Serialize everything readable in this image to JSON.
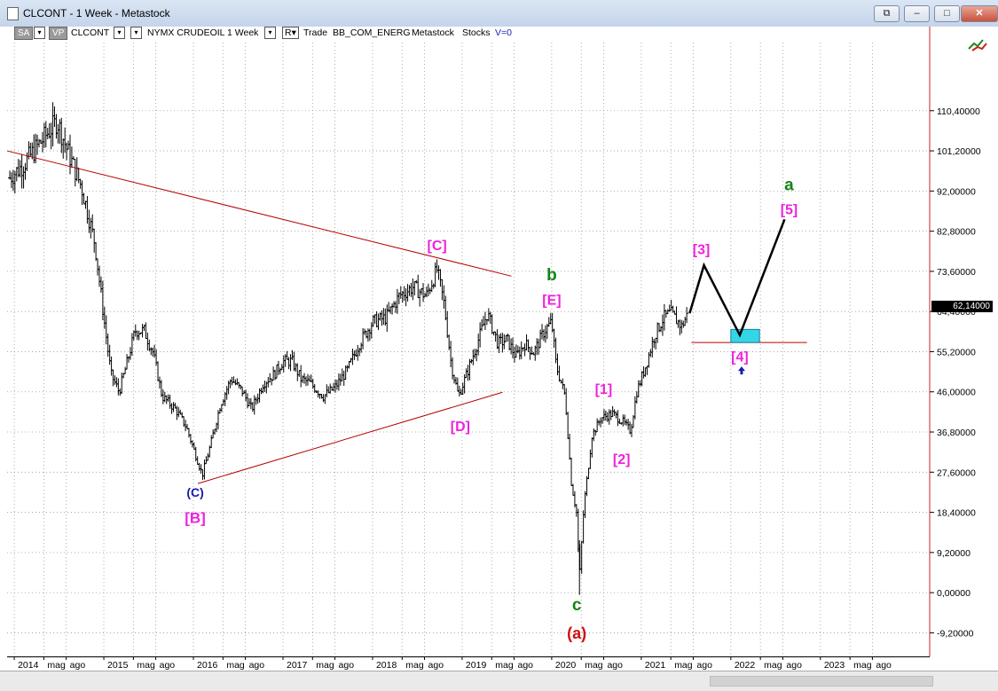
{
  "window": {
    "title": "CLCONT - 1 Week - Metastock",
    "controls": [
      "⧉",
      "–",
      "□",
      "✕"
    ]
  },
  "toolbar": {
    "sa_label": "SA",
    "vp_label": "VP",
    "symbol": "CLCONT",
    "instrument": "NYMX CRUDEOIL",
    "period": "1 Week",
    "r_label": "R",
    "trade_label": "Trade",
    "template": "BB_COM_ENERG",
    "source": "Metastock",
    "category": "Stocks",
    "volume": "V=0"
  },
  "colors": {
    "magenta": "#ee22dd",
    "green": "#148414",
    "blue": "#1a1ab0",
    "red": "#cc1111",
    "trendline": "#b40000",
    "target_box": "#33d6e6",
    "grid": "#9a9a9a",
    "bars": "#000000"
  },
  "chart_data": {
    "type": "ohlc",
    "interval": "weekly",
    "ylim": [
      -14.6,
      126
    ],
    "xlim": [
      2013.92,
      2024.22
    ],
    "grid": true,
    "last_price_label": "62,14000",
    "y_ticks": [
      {
        "value": 110.4,
        "label": "110,40000"
      },
      {
        "value": 101.2,
        "label": "101,20000"
      },
      {
        "value": 92.0,
        "label": "92,00000"
      },
      {
        "value": 82.8,
        "label": "82,80000"
      },
      {
        "value": 73.6,
        "label": "73,60000"
      },
      {
        "value": 64.4,
        "label": "64,40000"
      },
      {
        "value": 55.2,
        "label": "55,20000"
      },
      {
        "value": 46.0,
        "label": "46,00000"
      },
      {
        "value": 36.8,
        "label": "36,80000"
      },
      {
        "value": 27.6,
        "label": "27,60000"
      },
      {
        "value": 18.4,
        "label": "18,40000"
      },
      {
        "value": 9.2,
        "label": "9,20000"
      },
      {
        "value": 0.0,
        "label": "0,00000"
      },
      {
        "value": -9.2,
        "label": "-9,20000"
      }
    ],
    "x_ticks": [
      {
        "x": 2014.0,
        "label": "2014"
      },
      {
        "x": 2014.33,
        "label": "mag"
      },
      {
        "x": 2014.58,
        "label": "ago"
      },
      {
        "x": 2015.0,
        "label": "2015"
      },
      {
        "x": 2015.33,
        "label": "mag"
      },
      {
        "x": 2015.58,
        "label": "ago"
      },
      {
        "x": 2016.0,
        "label": "2016"
      },
      {
        "x": 2016.33,
        "label": "mag"
      },
      {
        "x": 2016.58,
        "label": "ago"
      },
      {
        "x": 2017.0,
        "label": "2017"
      },
      {
        "x": 2017.33,
        "label": "mag"
      },
      {
        "x": 2017.58,
        "label": "ago"
      },
      {
        "x": 2018.0,
        "label": "2018"
      },
      {
        "x": 2018.33,
        "label": "mag"
      },
      {
        "x": 2018.58,
        "label": "ago"
      },
      {
        "x": 2019.0,
        "label": "2019"
      },
      {
        "x": 2019.33,
        "label": "mag"
      },
      {
        "x": 2019.58,
        "label": "ago"
      },
      {
        "x": 2020.0,
        "label": "2020"
      },
      {
        "x": 2020.33,
        "label": "mag"
      },
      {
        "x": 2020.58,
        "label": "ago"
      },
      {
        "x": 2021.0,
        "label": "2021"
      },
      {
        "x": 2021.33,
        "label": "mag"
      },
      {
        "x": 2021.58,
        "label": "ago"
      },
      {
        "x": 2022.0,
        "label": "2022"
      },
      {
        "x": 2022.33,
        "label": "mag"
      },
      {
        "x": 2022.58,
        "label": "ago"
      },
      {
        "x": 2023.0,
        "label": "2023"
      },
      {
        "x": 2023.33,
        "label": "mag"
      },
      {
        "x": 2023.58,
        "label": "ago"
      }
    ],
    "price_path": [
      [
        2013.95,
        95
      ],
      [
        2014.1,
        98
      ],
      [
        2014.25,
        102
      ],
      [
        2014.4,
        106
      ],
      [
        2014.48,
        108
      ],
      [
        2014.58,
        102
      ],
      [
        2014.75,
        93
      ],
      [
        2014.9,
        80
      ],
      [
        2015.0,
        63
      ],
      [
        2015.08,
        50
      ],
      [
        2015.17,
        46
      ],
      [
        2015.25,
        52
      ],
      [
        2015.35,
        60
      ],
      [
        2015.45,
        60
      ],
      [
        2015.55,
        55
      ],
      [
        2015.65,
        45
      ],
      [
        2015.8,
        42
      ],
      [
        2015.92,
        38
      ],
      [
        2016.05,
        30
      ],
      [
        2016.1,
        27
      ],
      [
        2016.18,
        33
      ],
      [
        2016.3,
        43
      ],
      [
        2016.42,
        49
      ],
      [
        2016.55,
        46
      ],
      [
        2016.65,
        42
      ],
      [
        2016.78,
        48
      ],
      [
        2016.9,
        50
      ],
      [
        2017.0,
        53
      ],
      [
        2017.1,
        53
      ],
      [
        2017.2,
        49
      ],
      [
        2017.3,
        48
      ],
      [
        2017.45,
        45
      ],
      [
        2017.58,
        47
      ],
      [
        2017.72,
        51
      ],
      [
        2017.85,
        57
      ],
      [
        2018.0,
        62
      ],
      [
        2018.15,
        63
      ],
      [
        2018.3,
        68
      ],
      [
        2018.45,
        70
      ],
      [
        2018.6,
        68
      ],
      [
        2018.72,
        74
      ],
      [
        2018.8,
        66
      ],
      [
        2018.88,
        52
      ],
      [
        2018.96,
        45
      ],
      [
        2019.05,
        50
      ],
      [
        2019.15,
        56
      ],
      [
        2019.28,
        64
      ],
      [
        2019.4,
        57
      ],
      [
        2019.5,
        58
      ],
      [
        2019.6,
        54
      ],
      [
        2019.7,
        57
      ],
      [
        2019.8,
        55
      ],
      [
        2019.92,
        60
      ],
      [
        2020.0,
        62
      ],
      [
        2020.05,
        52
      ],
      [
        2020.15,
        45
      ],
      [
        2020.22,
        25
      ],
      [
        2020.28,
        18
      ],
      [
        2020.31,
        3
      ],
      [
        2020.36,
        20
      ],
      [
        2020.45,
        36
      ],
      [
        2020.55,
        40
      ],
      [
        2020.68,
        41
      ],
      [
        2020.8,
        39
      ],
      [
        2020.88,
        37
      ],
      [
        2020.95,
        46
      ],
      [
        2021.05,
        52
      ],
      [
        2021.15,
        59
      ],
      [
        2021.25,
        63
      ],
      [
        2021.33,
        64
      ],
      [
        2021.45,
        61
      ],
      [
        2021.52,
        64
      ]
    ],
    "projection": [
      [
        2021.54,
        64
      ],
      [
        2021.7,
        75
      ],
      [
        2022.1,
        59
      ],
      [
        2022.6,
        85.5
      ]
    ],
    "target_zone": {
      "x0": 2022.0,
      "x1": 2022.32,
      "y0": 57.3,
      "y1": 60.3
    },
    "support_line": {
      "x0": 2021.56,
      "x1": 2022.85,
      "y": 57.3
    },
    "trendlines": [
      {
        "from": [
          2013.92,
          101.2
        ],
        "to": [
          2019.55,
          72.5
        ]
      },
      {
        "from": [
          2016.05,
          25
        ],
        "to": [
          2019.45,
          45.9
        ]
      }
    ],
    "annotations": [
      {
        "text": "(C)",
        "x": 2016.02,
        "y": 22,
        "color": "blue",
        "size": 14
      },
      {
        "text": "[B]",
        "x": 2016.02,
        "y": 16,
        "color": "magenta",
        "size": 17
      },
      {
        "text": "[C]",
        "x": 2018.72,
        "y": 78.5,
        "color": "magenta",
        "size": 16
      },
      {
        "text": "[D]",
        "x": 2018.98,
        "y": 37,
        "color": "magenta",
        "size": 16
      },
      {
        "text": "b",
        "x": 2020.0,
        "y": 71.5,
        "color": "green",
        "size": 19
      },
      {
        "text": "[E]",
        "x": 2020.0,
        "y": 66,
        "color": "magenta",
        "size": 16
      },
      {
        "text": "c",
        "x": 2020.28,
        "y": -4,
        "color": "green",
        "size": 19
      },
      {
        "text": "(a)",
        "x": 2020.28,
        "y": -10.5,
        "color": "red",
        "size": 18
      },
      {
        "text": "[1]",
        "x": 2020.58,
        "y": 45.5,
        "color": "magenta",
        "size": 16
      },
      {
        "text": "[2]",
        "x": 2020.78,
        "y": 29.5,
        "color": "magenta",
        "size": 16
      },
      {
        "text": "[3]",
        "x": 2021.67,
        "y": 77.5,
        "color": "magenta",
        "size": 16
      },
      {
        "text": "[4]",
        "x": 2022.1,
        "y": 53,
        "color": "magenta",
        "size": 16
      },
      {
        "text": "a",
        "x": 2022.65,
        "y": 92.2,
        "color": "green",
        "size": 19
      },
      {
        "text": "[5]",
        "x": 2022.65,
        "y": 86.7,
        "color": "magenta",
        "size": 16
      }
    ],
    "buy_arrow": {
      "x": 2022.12,
      "y": 50.8
    }
  }
}
